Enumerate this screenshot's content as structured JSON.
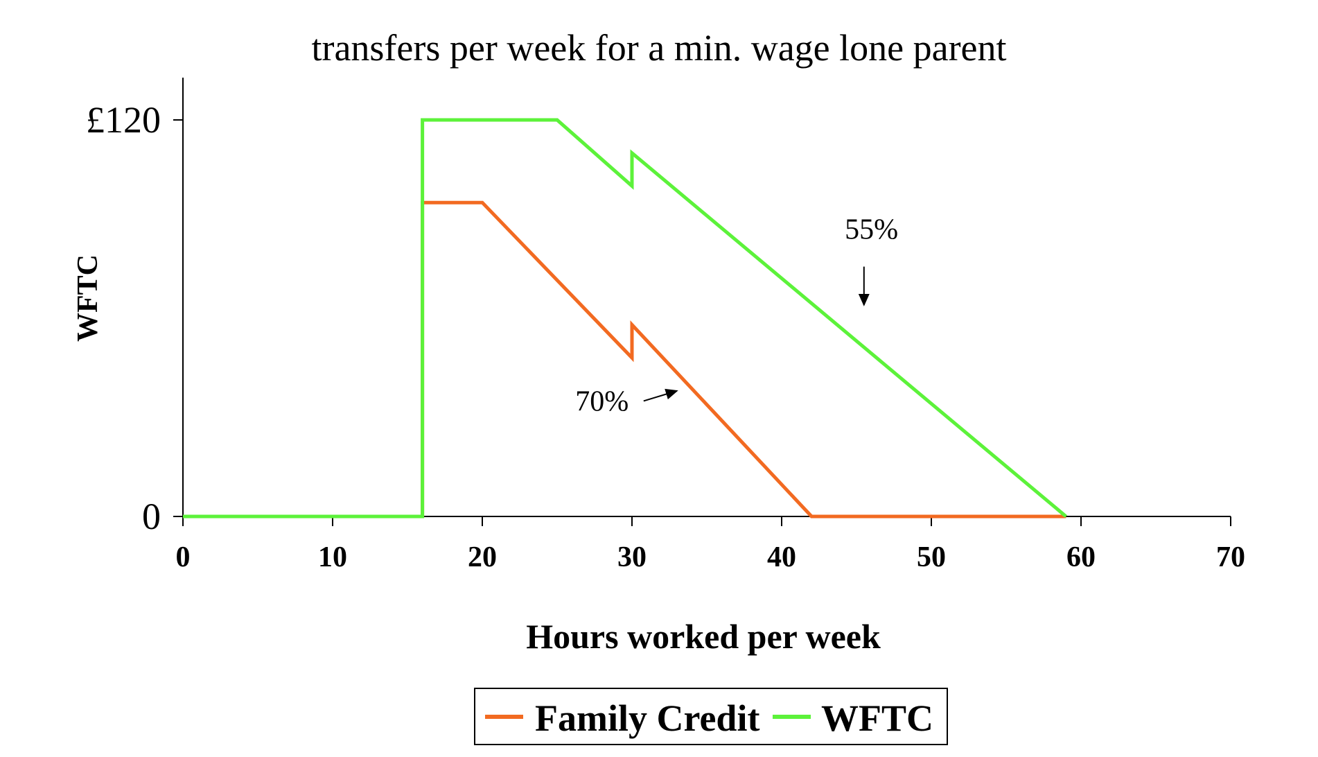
{
  "chart_data": {
    "type": "line",
    "title": "transfers per week for a min. wage lone parent",
    "xlabel": "Hours worked per week",
    "ylabel": "WFTC",
    "xlim": [
      0,
      70
    ],
    "ylim": [
      0,
      120
    ],
    "x_ticks": [
      "0",
      "10",
      "20",
      "30",
      "40",
      "50",
      "60",
      "70"
    ],
    "y_ticks": [
      {
        "label": "0",
        "value": 0
      },
      {
        "label": "£120",
        "value": 120
      }
    ],
    "grid": false,
    "legend_position": "bottom",
    "series": [
      {
        "name": "Family Credit",
        "color": "#f26a21",
        "points": [
          [
            0,
            0
          ],
          [
            16,
            0
          ],
          [
            16,
            95
          ],
          [
            20,
            95
          ],
          [
            30,
            48
          ],
          [
            30,
            58
          ],
          [
            42,
            0
          ],
          [
            59,
            0
          ]
        ]
      },
      {
        "name": "WFTC",
        "color": "#5cf23a",
        "points": [
          [
            0,
            0
          ],
          [
            16,
            0
          ],
          [
            16,
            120
          ],
          [
            25,
            120
          ],
          [
            30,
            100
          ],
          [
            30,
            110
          ],
          [
            59,
            0
          ]
        ]
      }
    ],
    "annotations": [
      {
        "text": "70%",
        "x": 28,
        "y": 32,
        "arrow_to": [
          33,
          38
        ]
      },
      {
        "text": "55%",
        "x": 46,
        "y": 84,
        "arrow_to": [
          45.5,
          64
        ]
      }
    ]
  }
}
